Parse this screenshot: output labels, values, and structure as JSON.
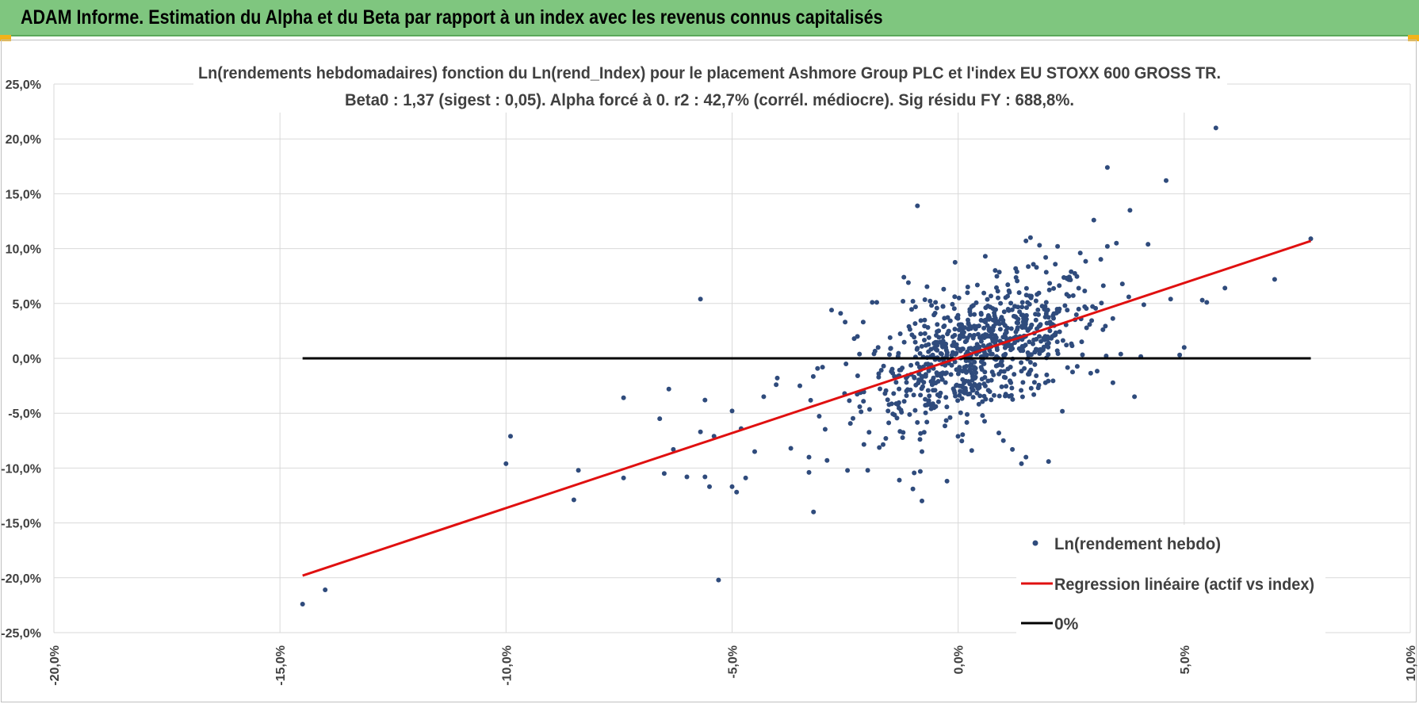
{
  "header": {
    "title": "ADAM Informe. Estimation du Alpha et du Beta par rapport à un index avec les revenus connus capitalisés",
    "bg_color": "#7fc67f",
    "corner_color": "#f2b21a"
  },
  "chart_data": {
    "type": "scatter",
    "title_line1": "Ln(rendements hebdomadaires) fonction du Ln(rend_Index) pour le placement Ashmore Group PLC et l'index EU STOXX 600 GROSS TR.",
    "title_line2": "Beta0 : 1,37  (sigest : 0,05).  Alpha forcé à 0. r2 : 42,7% (corrél. médiocre). Sig résidu FY : 688,8%.",
    "xlim": [
      -0.2,
      0.1
    ],
    "ylim": [
      -0.25,
      0.25
    ],
    "x_ticks": [
      -0.2,
      -0.15,
      -0.1,
      -0.05,
      0.0,
      0.05,
      0.1
    ],
    "y_ticks": [
      -0.25,
      -0.2,
      -0.15,
      -0.1,
      -0.05,
      0.0,
      0.05,
      0.1,
      0.15,
      0.2,
      0.25
    ],
    "x_tick_labels": [
      "-20,0%",
      "-15,0%",
      "-10,0%",
      "-5,0%",
      "0,0%",
      "5,0%",
      "10,0%"
    ],
    "y_tick_labels": [
      "-25,0%",
      "-20,0%",
      "-15,0%",
      "-10,0%",
      "-5,0%",
      "0,0%",
      "5,0%",
      "10,0%",
      "15,0%",
      "20,0%",
      "25,0%"
    ],
    "grid": true,
    "beta": 1.37,
    "series": [
      {
        "name": "Ln(rendement hebdo)",
        "kind": "scatter",
        "color": "#2f4b7c",
        "n_points": 900,
        "outliers": [
          [
            -0.145,
            -0.224
          ],
          [
            -0.14,
            -0.211
          ],
          [
            -0.1,
            -0.096
          ],
          [
            -0.099,
            -0.071
          ],
          [
            -0.085,
            -0.129
          ],
          [
            -0.084,
            -0.102
          ],
          [
            -0.074,
            -0.109
          ],
          [
            -0.074,
            -0.036
          ],
          [
            -0.066,
            -0.055
          ],
          [
            -0.065,
            -0.105
          ],
          [
            -0.064,
            -0.028
          ],
          [
            -0.063,
            -0.083
          ],
          [
            -0.06,
            -0.108
          ],
          [
            -0.057,
            0.054
          ],
          [
            -0.057,
            -0.067
          ],
          [
            -0.056,
            -0.108
          ],
          [
            -0.056,
            -0.038
          ],
          [
            -0.055,
            -0.117
          ],
          [
            -0.054,
            -0.071
          ],
          [
            -0.053,
            -0.202
          ],
          [
            -0.05,
            -0.048
          ],
          [
            -0.05,
            -0.117
          ],
          [
            -0.049,
            -0.122
          ],
          [
            -0.048,
            -0.064
          ],
          [
            -0.047,
            -0.109
          ],
          [
            -0.045,
            -0.085
          ],
          [
            -0.043,
            -0.035
          ],
          [
            -0.04,
            -0.018
          ],
          [
            -0.037,
            -0.082
          ],
          [
            -0.035,
            -0.025
          ],
          [
            -0.033,
            -0.09
          ],
          [
            -0.033,
            -0.104
          ],
          [
            -0.032,
            -0.14
          ],
          [
            -0.03,
            -0.008
          ],
          [
            -0.029,
            -0.093
          ],
          [
            -0.028,
            0.044
          ],
          [
            -0.026,
            0.041
          ],
          [
            -0.025,
            0.033
          ],
          [
            -0.023,
            0.018
          ],
          [
            -0.021,
            0.033
          ],
          [
            -0.02,
            -0.102
          ],
          [
            -0.019,
            0.051
          ],
          [
            -0.018,
            0.051
          ],
          [
            -0.016,
            -0.073
          ],
          [
            -0.013,
            -0.111
          ],
          [
            -0.012,
            0.074
          ],
          [
            -0.011,
            0.069
          ],
          [
            -0.01,
            -0.119
          ],
          [
            -0.01,
            0.052
          ],
          [
            -0.009,
            0.139
          ],
          [
            -0.008,
            -0.13
          ],
          [
            -0.008,
            -0.085
          ],
          [
            -0.005,
            0.051
          ],
          [
            0.003,
            -0.084
          ],
          [
            0.006,
            0.093
          ],
          [
            0.009,
            -0.068
          ],
          [
            0.01,
            -0.075
          ],
          [
            0.012,
            -0.083
          ],
          [
            0.013,
            0.079
          ],
          [
            0.014,
            -0.096
          ],
          [
            0.015,
            -0.09
          ],
          [
            0.015,
            0.107
          ],
          [
            0.016,
            0.11
          ],
          [
            0.018,
            0.103
          ],
          [
            0.02,
            -0.094
          ],
          [
            0.022,
            0.102
          ],
          [
            0.025,
            0.079
          ],
          [
            0.027,
            0.096
          ],
          [
            0.03,
            0.126
          ],
          [
            0.033,
            0.174
          ],
          [
            0.033,
            0.102
          ],
          [
            0.035,
            0.105
          ],
          [
            0.038,
            0.135
          ],
          [
            0.039,
            -0.035
          ],
          [
            0.042,
            0.104
          ],
          [
            0.046,
            0.162
          ],
          [
            0.047,
            0.054
          ],
          [
            0.049,
            0.003
          ],
          [
            0.05,
            0.01
          ],
          [
            0.054,
            0.053
          ],
          [
            0.055,
            0.051
          ],
          [
            0.057,
            0.21
          ],
          [
            0.059,
            0.064
          ],
          [
            0.07,
            0.072
          ],
          [
            0.078,
            0.109
          ]
        ]
      },
      {
        "name": "Regression linéaire (actif vs index)",
        "kind": "line",
        "color": "#e01010",
        "x": [
          -0.145,
          0.078
        ],
        "y": [
          -0.198,
          0.107
        ]
      },
      {
        "name": "0%",
        "kind": "line",
        "color": "#000000",
        "x": [
          -0.145,
          0.078
        ],
        "y": [
          0.0,
          0.0
        ]
      }
    ],
    "legend": {
      "position": "bottom-right",
      "entries": [
        "Ln(rendement hebdo)",
        "Regression linéaire (actif vs index)",
        "0%"
      ]
    }
  }
}
